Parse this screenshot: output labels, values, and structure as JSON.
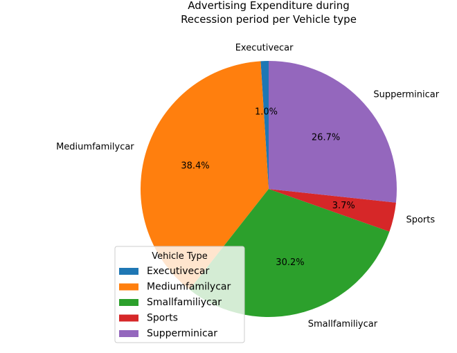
{
  "chart_data": {
    "type": "pie",
    "title": [
      "Advertising Expenditure during",
      "Recession period per Vehicle type"
    ],
    "start_angle_deg": 90,
    "direction": "counterclockwise",
    "labels": [
      "Executivecar",
      "Mediumfamilycar",
      "Smallfamiliycar",
      "Sports",
      "Supperminicar"
    ],
    "percent_labels": [
      "1.0%",
      "38.4%",
      "30.2%",
      "3.7%",
      "26.7%"
    ],
    "values": [
      1.0,
      38.4,
      30.2,
      3.7,
      26.7
    ],
    "colors": [
      "#1f77b4",
      "#ff7f0e",
      "#2ca02c",
      "#d62728",
      "#9467bd"
    ],
    "legend": {
      "title": "Vehicle Type",
      "placement": "lower-left",
      "entries": [
        "Executivecar",
        "Mediumfamilycar",
        "Smallfamiliycar",
        "Sports",
        "Supperminicar"
      ]
    }
  }
}
